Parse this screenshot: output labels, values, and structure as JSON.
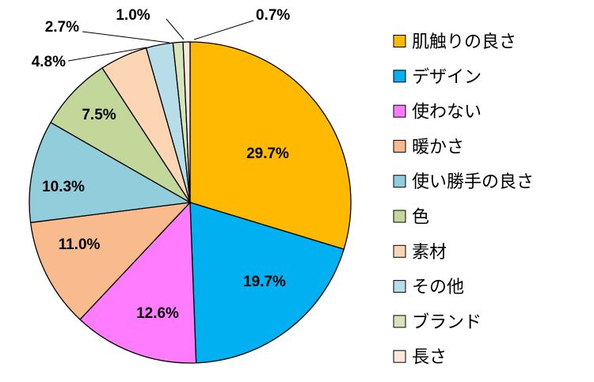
{
  "chart_data": {
    "type": "pie",
    "categories": [
      "肌触りの良さ",
      "デザイン",
      "使わない",
      "暖かさ",
      "使い勝手の良さ",
      "色",
      "素材",
      "その他",
      "ブランド",
      "長さ"
    ],
    "values": [
      29.7,
      19.7,
      12.6,
      11.0,
      10.3,
      7.5,
      4.8,
      2.7,
      1.0,
      0.7
    ],
    "labels": [
      "29.7%",
      "19.7%",
      "12.6%",
      "11.0%",
      "10.3%",
      "7.5%",
      "4.8%",
      "2.7%",
      "1.0%",
      "0.7%"
    ],
    "colors": [
      "#FFB900",
      "#00B0F0",
      "#FF7CFF",
      "#F9BB8D",
      "#92CDDC",
      "#C4D79B",
      "#FCD5B5",
      "#B7DDE8",
      "#D8E4BC",
      "#FDE9D9"
    ],
    "start_angle_deg": 0,
    "direction": "clockwise",
    "legend_position": "right",
    "title": ""
  }
}
